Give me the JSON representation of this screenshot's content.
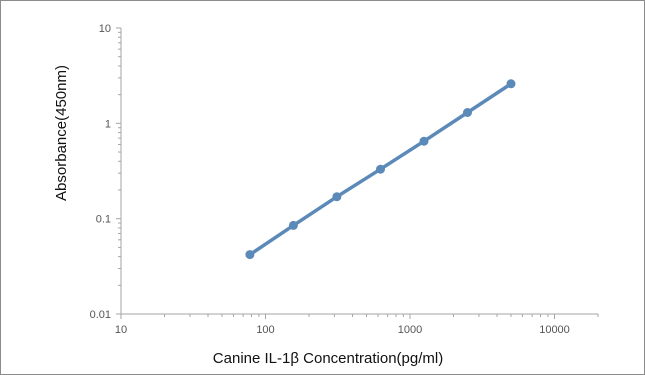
{
  "chart_data": {
    "type": "line",
    "title": "",
    "xlabel": "Canine IL-1β Concentration(pg/ml)",
    "ylabel": "Absorbance(450nm)",
    "x_scale": "log",
    "y_scale": "log",
    "xlim": [
      10,
      20000
    ],
    "ylim": [
      0.01,
      10
    ],
    "x_ticks": [
      "10",
      "100",
      "1000",
      "10000"
    ],
    "y_ticks": [
      "0.01",
      "0.1",
      "1",
      "10"
    ],
    "grid": false,
    "legend": "none",
    "series": [
      {
        "color": "#5b8ab9",
        "points": [
          {
            "x": 78,
            "y": 0.042
          },
          {
            "x": 156,
            "y": 0.085
          },
          {
            "x": 312,
            "y": 0.17
          },
          {
            "x": 625,
            "y": 0.33
          },
          {
            "x": 1250,
            "y": 0.65
          },
          {
            "x": 2500,
            "y": 1.3
          },
          {
            "x": 5000,
            "y": 2.6
          }
        ]
      }
    ]
  }
}
